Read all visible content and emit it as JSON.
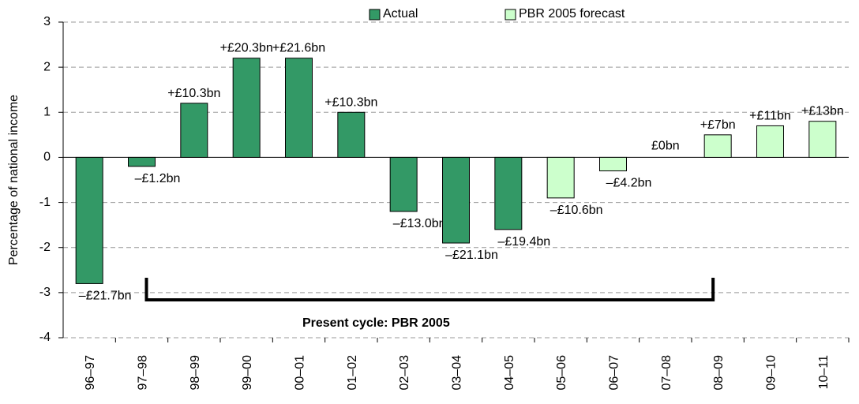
{
  "chart_data": {
    "type": "bar",
    "y_label": "Percentage of national income",
    "categories": [
      "96–97",
      "97–98",
      "98–99",
      "99–00",
      "00–01",
      "01–02",
      "02–03",
      "03–04",
      "04–05",
      "05–06",
      "06–07",
      "07–08",
      "08–09",
      "09–10",
      "10–11"
    ],
    "series": [
      {
        "name": "Actual",
        "color": "#339966",
        "values": [
          -2.8,
          -0.2,
          1.2,
          2.2,
          2.2,
          1.0,
          -1.2,
          -1.9,
          -1.6,
          null,
          null,
          null,
          null,
          null,
          null
        ]
      },
      {
        "name": "PBR 2005 forecast",
        "color": "#ccffcc",
        "values": [
          null,
          null,
          null,
          null,
          null,
          null,
          null,
          null,
          null,
          -0.9,
          -0.3,
          0,
          0.5,
          0.7,
          0.8
        ]
      }
    ],
    "annotations": [
      "–£21.7bn",
      "–£1.2bn",
      "+£10.3bn",
      "+£20.3bn",
      "+£21.6bn",
      "+£10.3bn",
      "–£13.0bn",
      "–£21.1bn",
      "–£19.4bn",
      "–£10.6bn",
      "–£4.2bn",
      "£0bn",
      "+£7bn",
      "+£11bn",
      "+£13bn"
    ],
    "bracket_label": "Present cycle: PBR 2005",
    "ylim": [
      -4,
      3
    ],
    "yticks": [
      -4,
      -3,
      -2,
      -1,
      0,
      1,
      2,
      3
    ],
    "grid": true
  }
}
